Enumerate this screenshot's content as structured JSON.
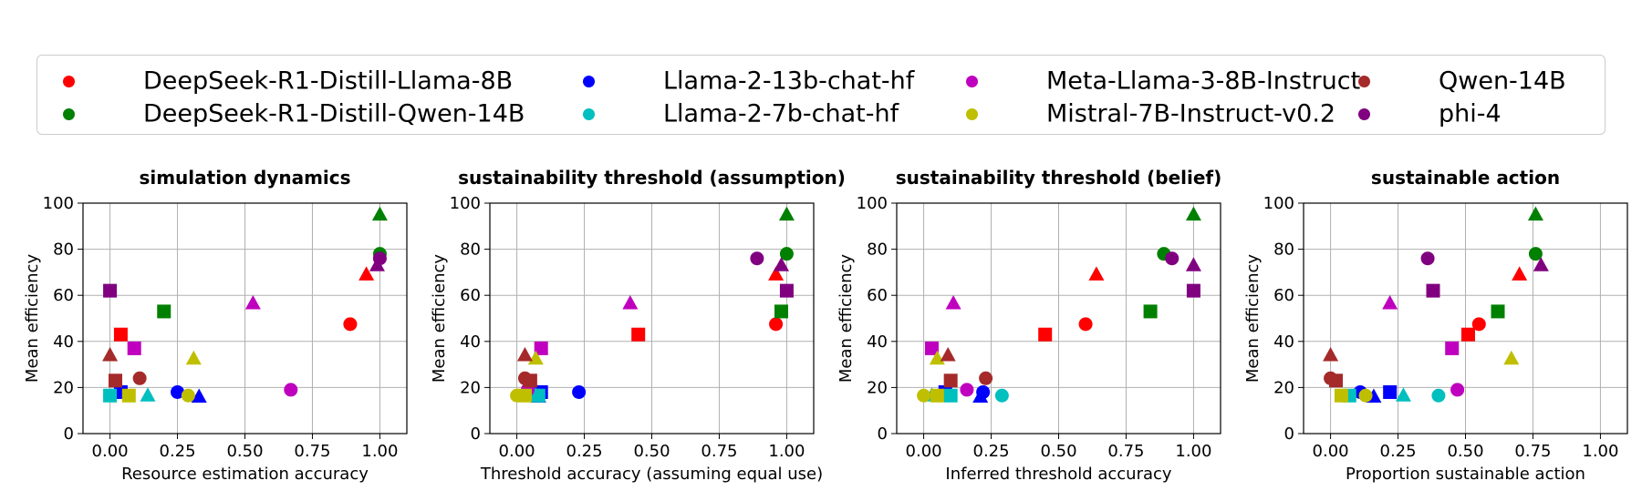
{
  "legend": {
    "entries": [
      {
        "name": "DeepSeek-R1-Distill-Llama-8B",
        "color": "#ff0000"
      },
      {
        "name": "DeepSeek-R1-Distill-Qwen-14B",
        "color": "#008000"
      },
      {
        "name": "Llama-2-13b-chat-hf",
        "color": "#0000ff"
      },
      {
        "name": "Llama-2-7b-chat-hf",
        "color": "#00bfbf"
      },
      {
        "name": "Meta-Llama-3-8B-Instruct",
        "color": "#bf00bf"
      },
      {
        "name": "Mistral-7B-Instruct-v0.2",
        "color": "#bfbf00"
      },
      {
        "name": "Qwen-14B",
        "color": "#a52a2a"
      },
      {
        "name": "phi-4",
        "color": "#800080"
      }
    ]
  },
  "chart_data": [
    {
      "type": "scatter",
      "title": "simulation dynamics",
      "xlabel": "Resource estimation accuracy",
      "ylabel": "Mean efficiency",
      "xlim": [
        -0.1,
        1.1
      ],
      "ylim": [
        0,
        100
      ],
      "xticks": [
        "0.00",
        "0.25",
        "0.50",
        "0.75",
        "1.00"
      ],
      "yticks": [
        "0",
        "20",
        "40",
        "60",
        "80",
        "100"
      ],
      "grid": true,
      "series": [
        {
          "name": "DeepSeek-R1-Distill-Llama-8B",
          "points": [
            {
              "x": 0.89,
              "y": 47.5,
              "m": "circle"
            },
            {
              "x": 0.95,
              "y": 69,
              "m": "triangle"
            },
            {
              "x": 0.04,
              "y": 43,
              "m": "square"
            }
          ]
        },
        {
          "name": "DeepSeek-R1-Distill-Qwen-14B",
          "points": [
            {
              "x": 1.0,
              "y": 78,
              "m": "circle"
            },
            {
              "x": 1.0,
              "y": 95,
              "m": "triangle"
            },
            {
              "x": 0.2,
              "y": 53,
              "m": "square"
            }
          ]
        },
        {
          "name": "Llama-2-13b-chat-hf",
          "points": [
            {
              "x": 0.25,
              "y": 18,
              "m": "circle"
            },
            {
              "x": 0.33,
              "y": 16,
              "m": "triangle"
            },
            {
              "x": 0.04,
              "y": 18,
              "m": "square"
            }
          ]
        },
        {
          "name": "Llama-2-7b-chat-hf",
          "points": [
            {
              "x": 0.0,
              "y": 16.5,
              "m": "circle"
            },
            {
              "x": 0.14,
              "y": 16.5,
              "m": "triangle"
            },
            {
              "x": 0.0,
              "y": 16.5,
              "m": "square"
            }
          ]
        },
        {
          "name": "Meta-Llama-3-8B-Instruct",
          "points": [
            {
              "x": 0.67,
              "y": 19,
              "m": "circle"
            },
            {
              "x": 0.53,
              "y": 56.5,
              "m": "triangle"
            },
            {
              "x": 0.09,
              "y": 37,
              "m": "square"
            }
          ]
        },
        {
          "name": "Mistral-7B-Instruct-v0.2",
          "points": [
            {
              "x": 0.29,
              "y": 16.5,
              "m": "circle"
            },
            {
              "x": 0.31,
              "y": 32.5,
              "m": "triangle"
            },
            {
              "x": 0.07,
              "y": 16.5,
              "m": "square"
            }
          ]
        },
        {
          "name": "Qwen-14B",
          "points": [
            {
              "x": 0.11,
              "y": 24,
              "m": "circle"
            },
            {
              "x": 0.0,
              "y": 34,
              "m": "triangle"
            },
            {
              "x": 0.02,
              "y": 23,
              "m": "square"
            }
          ]
        },
        {
          "name": "phi-4",
          "points": [
            {
              "x": 1.0,
              "y": 76,
              "m": "circle"
            },
            {
              "x": 0.99,
              "y": 73,
              "m": "triangle"
            },
            {
              "x": 0.0,
              "y": 62,
              "m": "square"
            }
          ]
        }
      ]
    },
    {
      "type": "scatter",
      "title": "sustainability threshold (assumption)",
      "xlabel": "Threshold accuracy (assuming equal use)",
      "ylabel": "Mean efficiency",
      "xlim": [
        -0.1,
        1.1
      ],
      "ylim": [
        0,
        100
      ],
      "xticks": [
        "0.00",
        "0.25",
        "0.50",
        "0.75",
        "1.00"
      ],
      "yticks": [
        "0",
        "20",
        "40",
        "60",
        "80",
        "100"
      ],
      "grid": true,
      "series": [
        {
          "name": "DeepSeek-R1-Distill-Llama-8B",
          "points": [
            {
              "x": 0.96,
              "y": 47.5,
              "m": "circle"
            },
            {
              "x": 0.96,
              "y": 69,
              "m": "triangle"
            },
            {
              "x": 0.45,
              "y": 43,
              "m": "square"
            }
          ]
        },
        {
          "name": "DeepSeek-R1-Distill-Qwen-14B",
          "points": [
            {
              "x": 1.0,
              "y": 78,
              "m": "circle"
            },
            {
              "x": 1.0,
              "y": 95,
              "m": "triangle"
            },
            {
              "x": 0.98,
              "y": 53,
              "m": "square"
            }
          ]
        },
        {
          "name": "Llama-2-13b-chat-hf",
          "points": [
            {
              "x": 0.23,
              "y": 18,
              "m": "circle"
            },
            {
              "x": 0.08,
              "y": 16,
              "m": "triangle"
            },
            {
              "x": 0.09,
              "y": 18,
              "m": "square"
            }
          ]
        },
        {
          "name": "Llama-2-7b-chat-hf",
          "points": [
            {
              "x": 0.08,
              "y": 16.5,
              "m": "circle"
            },
            {
              "x": 0.07,
              "y": 16.5,
              "m": "triangle"
            },
            {
              "x": 0.08,
              "y": 16.5,
              "m": "square"
            }
          ]
        },
        {
          "name": "Meta-Llama-3-8B-Instruct",
          "points": [
            {
              "x": 0.04,
              "y": 19,
              "m": "circle"
            },
            {
              "x": 0.42,
              "y": 56.5,
              "m": "triangle"
            },
            {
              "x": 0.09,
              "y": 37,
              "m": "square"
            }
          ]
        },
        {
          "name": "Mistral-7B-Instruct-v0.2",
          "points": [
            {
              "x": 0.0,
              "y": 16.5,
              "m": "circle"
            },
            {
              "x": 0.07,
              "y": 32.5,
              "m": "triangle"
            },
            {
              "x": 0.03,
              "y": 16.5,
              "m": "square"
            }
          ]
        },
        {
          "name": "Qwen-14B",
          "points": [
            {
              "x": 0.03,
              "y": 24,
              "m": "circle"
            },
            {
              "x": 0.03,
              "y": 34,
              "m": "triangle"
            },
            {
              "x": 0.05,
              "y": 23,
              "m": "square"
            }
          ]
        },
        {
          "name": "phi-4",
          "points": [
            {
              "x": 0.89,
              "y": 76,
              "m": "circle"
            },
            {
              "x": 0.98,
              "y": 73,
              "m": "triangle"
            },
            {
              "x": 1.0,
              "y": 62,
              "m": "square"
            }
          ]
        }
      ]
    },
    {
      "type": "scatter",
      "title": "sustainability threshold (belief)",
      "xlabel": "Inferred threshold accuracy",
      "ylabel": "Mean efficiency",
      "xlim": [
        -0.1,
        1.1
      ],
      "ylim": [
        0,
        100
      ],
      "xticks": [
        "0.00",
        "0.25",
        "0.50",
        "0.75",
        "1.00"
      ],
      "yticks": [
        "0",
        "20",
        "40",
        "60",
        "80",
        "100"
      ],
      "grid": true,
      "series": [
        {
          "name": "DeepSeek-R1-Distill-Llama-8B",
          "points": [
            {
              "x": 0.6,
              "y": 47.5,
              "m": "circle"
            },
            {
              "x": 0.64,
              "y": 69,
              "m": "triangle"
            },
            {
              "x": 0.45,
              "y": 43,
              "m": "square"
            }
          ]
        },
        {
          "name": "DeepSeek-R1-Distill-Qwen-14B",
          "points": [
            {
              "x": 0.89,
              "y": 78,
              "m": "circle"
            },
            {
              "x": 1.0,
              "y": 95,
              "m": "triangle"
            },
            {
              "x": 0.84,
              "y": 53,
              "m": "square"
            }
          ]
        },
        {
          "name": "Llama-2-13b-chat-hf",
          "points": [
            {
              "x": 0.22,
              "y": 18,
              "m": "circle"
            },
            {
              "x": 0.21,
              "y": 16,
              "m": "triangle"
            },
            {
              "x": 0.08,
              "y": 18,
              "m": "square"
            }
          ]
        },
        {
          "name": "Llama-2-7b-chat-hf",
          "points": [
            {
              "x": 0.29,
              "y": 16.5,
              "m": "circle"
            },
            {
              "x": 0.03,
              "y": 16.5,
              "m": "triangle"
            },
            {
              "x": 0.1,
              "y": 16.5,
              "m": "square"
            }
          ]
        },
        {
          "name": "Meta-Llama-3-8B-Instruct",
          "points": [
            {
              "x": 0.16,
              "y": 19,
              "m": "circle"
            },
            {
              "x": 0.11,
              "y": 56.5,
              "m": "triangle"
            },
            {
              "x": 0.03,
              "y": 37,
              "m": "square"
            }
          ]
        },
        {
          "name": "Mistral-7B-Instruct-v0.2",
          "points": [
            {
              "x": 0.0,
              "y": 16.5,
              "m": "circle"
            },
            {
              "x": 0.05,
              "y": 32.5,
              "m": "triangle"
            },
            {
              "x": 0.05,
              "y": 16.5,
              "m": "square"
            }
          ]
        },
        {
          "name": "Qwen-14B",
          "points": [
            {
              "x": 0.23,
              "y": 24,
              "m": "circle"
            },
            {
              "x": 0.09,
              "y": 34,
              "m": "triangle"
            },
            {
              "x": 0.1,
              "y": 23,
              "m": "square"
            }
          ]
        },
        {
          "name": "phi-4",
          "points": [
            {
              "x": 0.92,
              "y": 76,
              "m": "circle"
            },
            {
              "x": 1.0,
              "y": 73,
              "m": "triangle"
            },
            {
              "x": 1.0,
              "y": 62,
              "m": "square"
            }
          ]
        }
      ]
    },
    {
      "type": "scatter",
      "title": "sustainable action",
      "xlabel": "Proportion sustainable action",
      "ylabel": "Mean efficiency",
      "xlim": [
        -0.1,
        1.1
      ],
      "ylim": [
        0,
        100
      ],
      "xticks": [
        "0.00",
        "0.25",
        "0.50",
        "0.75",
        "1.00"
      ],
      "yticks": [
        "0",
        "20",
        "40",
        "60",
        "80",
        "100"
      ],
      "grid": true,
      "series": [
        {
          "name": "DeepSeek-R1-Distill-Llama-8B",
          "points": [
            {
              "x": 0.55,
              "y": 47.5,
              "m": "circle"
            },
            {
              "x": 0.7,
              "y": 69,
              "m": "triangle"
            },
            {
              "x": 0.51,
              "y": 43,
              "m": "square"
            }
          ]
        },
        {
          "name": "DeepSeek-R1-Distill-Qwen-14B",
          "points": [
            {
              "x": 0.76,
              "y": 78,
              "m": "circle"
            },
            {
              "x": 0.76,
              "y": 95,
              "m": "triangle"
            },
            {
              "x": 0.62,
              "y": 53,
              "m": "square"
            }
          ]
        },
        {
          "name": "Llama-2-13b-chat-hf",
          "points": [
            {
              "x": 0.11,
              "y": 18,
              "m": "circle"
            },
            {
              "x": 0.16,
              "y": 16,
              "m": "triangle"
            },
            {
              "x": 0.22,
              "y": 18,
              "m": "square"
            }
          ]
        },
        {
          "name": "Llama-2-7b-chat-hf",
          "points": [
            {
              "x": 0.4,
              "y": 16.5,
              "m": "circle"
            },
            {
              "x": 0.27,
              "y": 16.5,
              "m": "triangle"
            },
            {
              "x": 0.07,
              "y": 16.5,
              "m": "square"
            }
          ]
        },
        {
          "name": "Meta-Llama-3-8B-Instruct",
          "points": [
            {
              "x": 0.47,
              "y": 19,
              "m": "circle"
            },
            {
              "x": 0.22,
              "y": 56.5,
              "m": "triangle"
            },
            {
              "x": 0.45,
              "y": 37,
              "m": "square"
            }
          ]
        },
        {
          "name": "Mistral-7B-Instruct-v0.2",
          "points": [
            {
              "x": 0.13,
              "y": 16.5,
              "m": "circle"
            },
            {
              "x": 0.67,
              "y": 32.5,
              "m": "triangle"
            },
            {
              "x": 0.04,
              "y": 16.5,
              "m": "square"
            }
          ]
        },
        {
          "name": "Qwen-14B",
          "points": [
            {
              "x": 0.0,
              "y": 24,
              "m": "circle"
            },
            {
              "x": 0.0,
              "y": 34,
              "m": "triangle"
            },
            {
              "x": 0.02,
              "y": 23,
              "m": "square"
            }
          ]
        },
        {
          "name": "phi-4",
          "points": [
            {
              "x": 0.36,
              "y": 76,
              "m": "circle"
            },
            {
              "x": 0.78,
              "y": 73,
              "m": "triangle"
            },
            {
              "x": 0.38,
              "y": 62,
              "m": "square"
            }
          ]
        }
      ]
    }
  ]
}
